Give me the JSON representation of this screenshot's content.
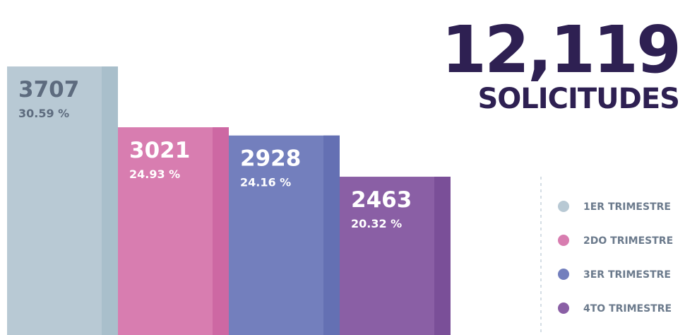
{
  "chart_data": {
    "type": "bar",
    "title": "12,119",
    "subtitle": "SOLICITUDES",
    "categories": [
      "1ER TRIMESTRE",
      "2DO TRIMESTRE",
      "3ER TRIMESTRE",
      "4TO TRIMESTRE"
    ],
    "values": [
      3707,
      3021,
      2928,
      2463
    ],
    "percentage_labels": [
      "30.59 %",
      "24.93 %",
      "24.16 %",
      "20.32 %"
    ],
    "colors": [
      "#b8c9d4",
      "#d87db0",
      "#737fbd",
      "#8a5fa5"
    ],
    "edge_colors": [
      "#a9bfcb",
      "#cd68a3",
      "#6470b3",
      "#7a4f98"
    ],
    "label_colors": [
      "#5d6b7e",
      "#ffffff",
      "#ffffff",
      "#ffffff"
    ],
    "ylim": [
      677,
      4457
    ]
  }
}
